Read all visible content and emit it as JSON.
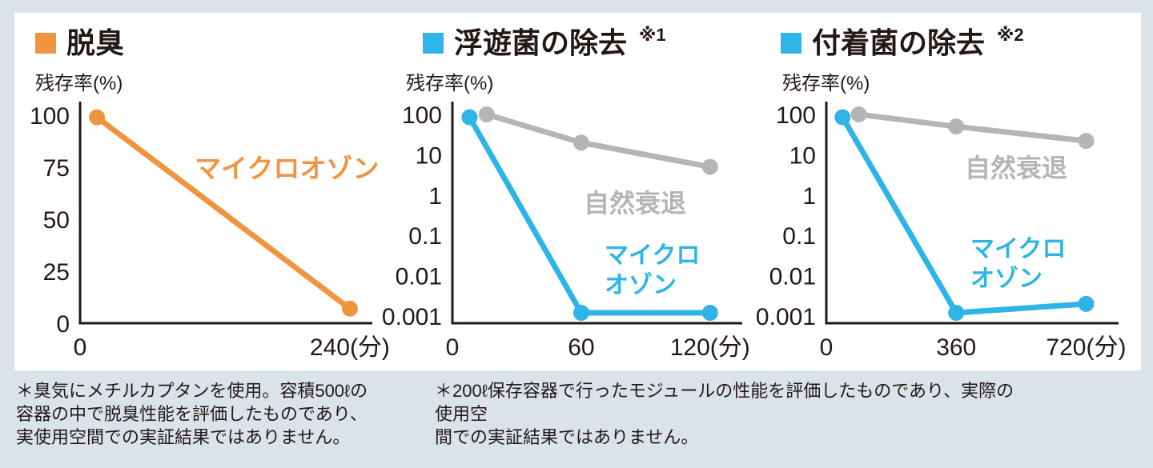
{
  "page": {
    "background": "#dbe3ea",
    "panel_background": "#ffffff"
  },
  "colors": {
    "orange": "#f0953f",
    "blue": "#2eb4e6",
    "gray": "#b5b5b5",
    "axis": "#231815",
    "text": "#231815"
  },
  "footnotes": {
    "left": "＊臭気にメチルカプタンを使用。容積500ℓの\n容器の中で脱臭性能を評価したものであり、\n実使用空間での実証結果ではありません。",
    "right": "＊200ℓ保存容器で行ったモジュールの性能を評価したものであり、実際の使用空\n間での実証結果ではありません。"
  },
  "chart_data": [
    {
      "type": "line",
      "title": "脱臭",
      "title_sup": "",
      "ylabel": "残存率(%)",
      "yscale": "linear",
      "ylim": [
        0,
        100
      ],
      "yticks": [
        100,
        75,
        50,
        25,
        0
      ],
      "xlim": [
        0,
        260
      ],
      "xticks": [
        {
          "v": 0,
          "label": "0"
        },
        {
          "v": 240,
          "label": "240(分)"
        }
      ],
      "legend_color": "#f0953f",
      "grid": false,
      "series": [
        {
          "name": "マイクロオゾン",
          "label": "マイクロオゾン",
          "color": "#f0953f",
          "x": [
            15,
            240
          ],
          "y": [
            99,
            7
          ]
        }
      ]
    },
    {
      "type": "line",
      "title": "浮遊菌の除去",
      "title_sup": "※1",
      "ylabel": "残存率(%)",
      "yscale": "log",
      "ylim": [
        0.001,
        100
      ],
      "yticks": [
        100,
        10,
        1,
        0.1,
        0.01,
        0.001
      ],
      "xlim": [
        0,
        135
      ],
      "xticks": [
        {
          "v": 0,
          "label": "0"
        },
        {
          "v": 60,
          "label": "60"
        },
        {
          "v": 120,
          "label": "120(分)"
        }
      ],
      "legend_color": "#2eb4e6",
      "grid": false,
      "series": [
        {
          "name": "自然衰退",
          "label": "自然衰退",
          "color": "#b5b5b5",
          "x": [
            16,
            60,
            120
          ],
          "y": [
            100,
            20,
            5
          ]
        },
        {
          "name": "マイクロオゾン",
          "label": "マイクロ\nオゾン",
          "color": "#2eb4e6",
          "x": [
            8,
            60,
            120
          ],
          "y": [
            85,
            0.0012,
            0.0012
          ]
        }
      ]
    },
    {
      "type": "line",
      "title": "付着菌の除去",
      "title_sup": "※2",
      "ylabel": "残存率(%)",
      "yscale": "log",
      "ylim": [
        0.001,
        100
      ],
      "yticks": [
        100,
        10,
        1,
        0.1,
        0.01,
        0.001
      ],
      "xlim": [
        0,
        810
      ],
      "xticks": [
        {
          "v": 0,
          "label": "0"
        },
        {
          "v": 360,
          "label": "360"
        },
        {
          "v": 720,
          "label": "720(分)"
        }
      ],
      "legend_color": "#2eb4e6",
      "grid": false,
      "series": [
        {
          "name": "自然衰退",
          "label": "自然衰退",
          "color": "#b5b5b5",
          "x": [
            90,
            360,
            720
          ],
          "y": [
            100,
            50,
            22
          ]
        },
        {
          "name": "マイクロオゾン",
          "label": "マイクロ\nオゾン",
          "color": "#2eb4e6",
          "x": [
            45,
            360,
            720
          ],
          "y": [
            85,
            0.0012,
            0.002
          ]
        }
      ]
    }
  ]
}
